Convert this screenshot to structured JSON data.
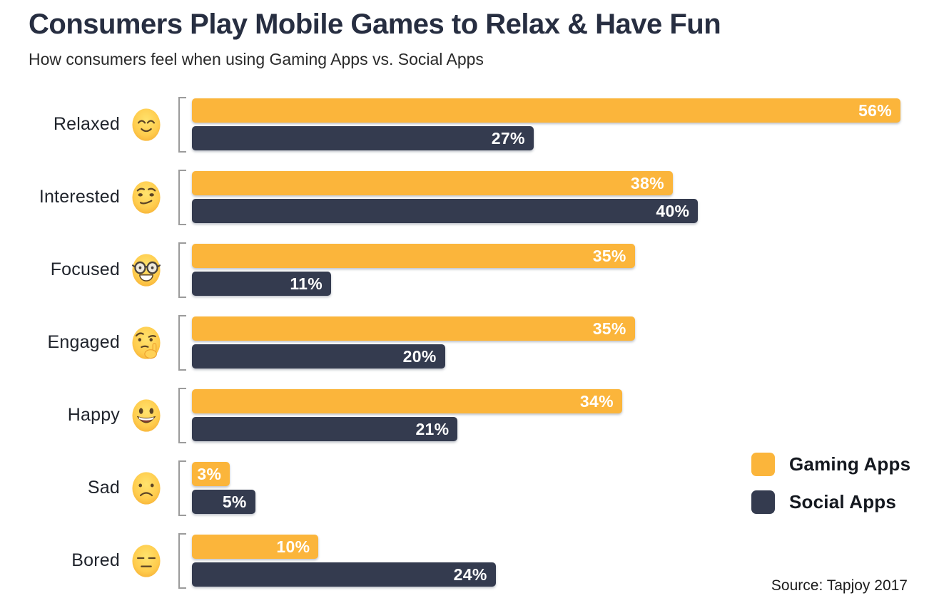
{
  "header": {
    "title": "Consumers Play Mobile Games to Relax & Have Fun",
    "subtitle": "How consumers feel when using Gaming Apps vs. Social Apps"
  },
  "legend": {
    "items": [
      {
        "label": "Gaming Apps",
        "color": "#FBB53B"
      },
      {
        "label": "Social Apps",
        "color": "#343B4F"
      }
    ]
  },
  "source": "Source: Tapjoy 2017",
  "colors": {
    "gaming_bar": "#FBB53B",
    "social_bar": "#343B4F",
    "title_text": "#272E41",
    "bracket": "#9B9B9B",
    "value_text": "#FFFFFF",
    "background": "#FFFFFF"
  },
  "chart_data": {
    "type": "bar",
    "orientation": "horizontal",
    "title": "Consumers Play Mobile Games to Relax & Have Fun",
    "subtitle": "How consumers feel when using Gaming Apps vs. Social Apps",
    "grid": false,
    "axis_labels_shown": false,
    "xmax": 56,
    "value_format": "percent",
    "legend_position": "right-middle",
    "categories": [
      "Relaxed",
      "Interested",
      "Focused",
      "Engaged",
      "Happy",
      "Sad",
      "Bored"
    ],
    "category_emojis": [
      "relieved-face",
      "smirking-face",
      "nerd-face",
      "thinking-face",
      "grinning-face",
      "frowning-face",
      "expressionless-face"
    ],
    "series": [
      {
        "name": "Gaming Apps",
        "color": "#FBB53B",
        "values": [
          56,
          38,
          35,
          35,
          34,
          3,
          10
        ],
        "labels": [
          "56%",
          "38%",
          "35%",
          "35%",
          "34%",
          "3%",
          "10%"
        ]
      },
      {
        "name": "Social Apps",
        "color": "#343B4F",
        "values": [
          27,
          40,
          11,
          20,
          21,
          5,
          24
        ],
        "labels": [
          "27%",
          "40%",
          "11%",
          "20%",
          "21%",
          "5%",
          "24%"
        ]
      }
    ],
    "source": "Source: Tapjoy 2017"
  }
}
